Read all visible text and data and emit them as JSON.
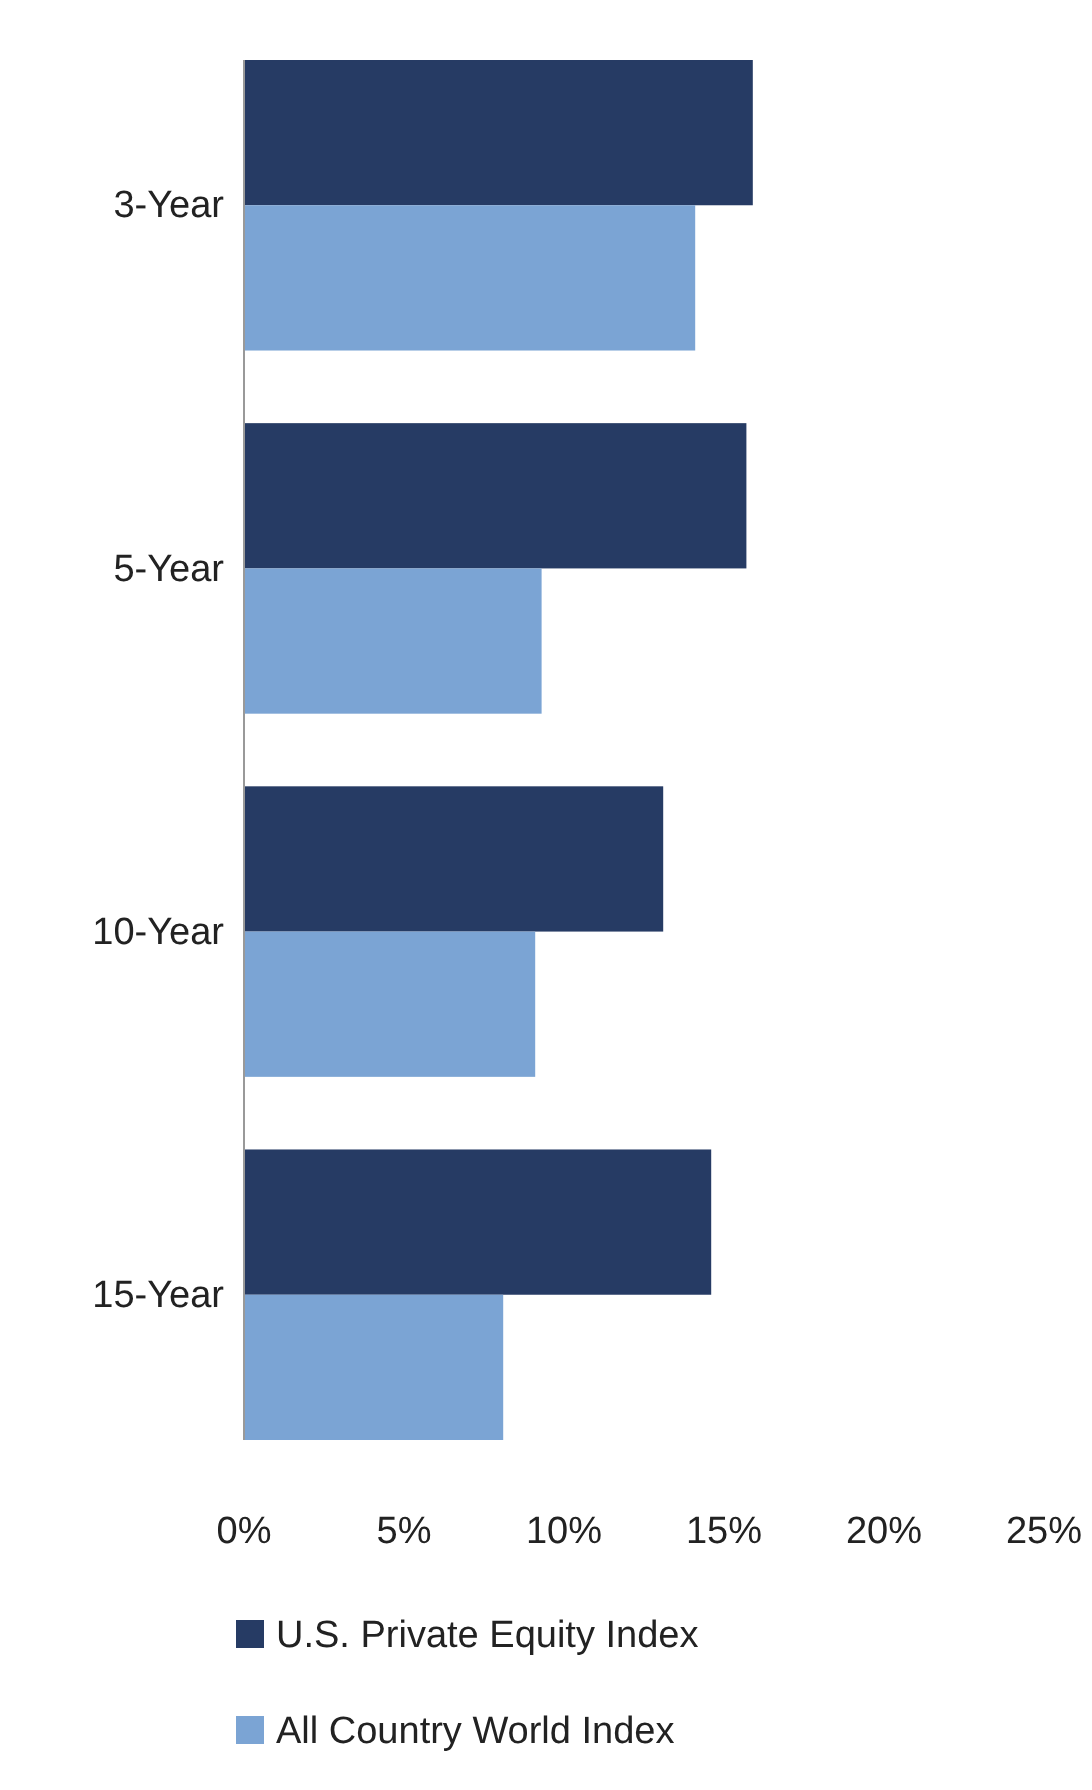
{
  "chart_data": {
    "type": "bar",
    "orientation": "horizontal",
    "categories": [
      "3-Year",
      "5-Year",
      "10-Year",
      "15-Year"
    ],
    "series": [
      {
        "name": "U.S. Private Equity Index",
        "color": "#263b64",
        "values": [
          15.9,
          15.7,
          13.1,
          14.6
        ]
      },
      {
        "name": "All Country World Index",
        "color": "#7ba4d4",
        "values": [
          14.1,
          9.3,
          9.1,
          8.1
        ]
      }
    ],
    "xlim": [
      0,
      25
    ],
    "xticks": [
      {
        "value": 0,
        "label": "0%"
      },
      {
        "value": 5,
        "label": "5%"
      },
      {
        "value": 10,
        "label": "10%"
      },
      {
        "value": 15,
        "label": "15%"
      },
      {
        "value": 20,
        "label": "20%"
      },
      {
        "value": 25,
        "label": "25%"
      }
    ],
    "grid": false,
    "legend": "bottom"
  }
}
